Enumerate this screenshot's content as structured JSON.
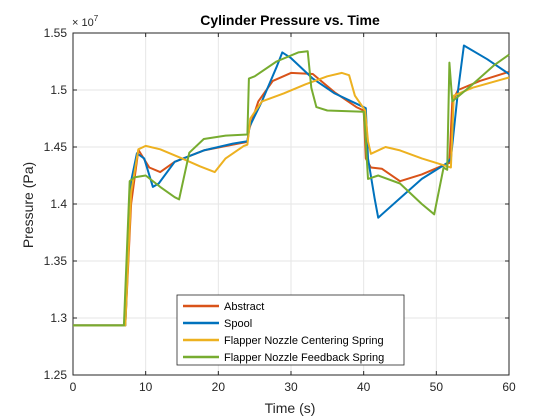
{
  "chart_data": {
    "type": "line",
    "title": "Cylinder Pressure vs. Time",
    "xlabel": "Time (s)",
    "ylabel": "Pressure (Pa)",
    "xlim": [
      0,
      60
    ],
    "ylim": [
      1.25,
      1.55
    ],
    "y_exponent_label": "× 10",
    "y_exponent_power": "7",
    "x_ticks": [
      "0",
      "10",
      "20",
      "30",
      "40",
      "50",
      "60"
    ],
    "y_ticks": [
      "1.25",
      "1.3",
      "1.35",
      "1.4",
      "1.45",
      "1.5",
      "1.55"
    ],
    "grid": true,
    "legend_position": "bottom-center",
    "series": [
      {
        "name": "Abstract",
        "color": "#D95319",
        "x": [
          0,
          7.2,
          8.0,
          9.0,
          10.5,
          12.0,
          14.0,
          18.0,
          22.0,
          24.0,
          24.2,
          25.5,
          27.5,
          30.0,
          33.0,
          36.0,
          39.0,
          40.0,
          40.3,
          41.0,
          42.5,
          45.0,
          48.0,
          51.0,
          51.8,
          52.2,
          53.0,
          56.0,
          60.0
        ],
        "y": [
          1.2935,
          1.2935,
          1.4,
          1.4475,
          1.432,
          1.428,
          1.437,
          1.447,
          1.452,
          1.4545,
          1.465,
          1.49,
          1.508,
          1.515,
          1.514,
          1.498,
          1.485,
          1.482,
          1.44,
          1.432,
          1.431,
          1.42,
          1.426,
          1.434,
          1.436,
          1.49,
          1.5,
          1.508,
          1.516
        ]
      },
      {
        "name": "Spool",
        "color": "#0072BD",
        "x": [
          0,
          7.2,
          8.0,
          8.8,
          9.8,
          11.0,
          11.8,
          14.0,
          18.0,
          22.0,
          24.0,
          24.3,
          26.0,
          28.0,
          28.8,
          30.0,
          33.0,
          36.0,
          39.0,
          40.3,
          40.6,
          41.5,
          42.0,
          45.0,
          48.0,
          51.5,
          52.0,
          53.0,
          53.8,
          57.0,
          60.0
        ],
        "y": [
          1.2935,
          1.2935,
          1.42,
          1.4445,
          1.44,
          1.415,
          1.418,
          1.437,
          1.447,
          1.453,
          1.455,
          1.468,
          1.49,
          1.52,
          1.533,
          1.528,
          1.51,
          1.497,
          1.488,
          1.484,
          1.44,
          1.405,
          1.388,
          1.405,
          1.422,
          1.436,
          1.44,
          1.5,
          1.539,
          1.527,
          1.514
        ]
      },
      {
        "name": "Flapper Nozzle Centering Spring",
        "color": "#EDB120",
        "x": [
          0,
          7.2,
          8.0,
          9.0,
          10.0,
          12.0,
          15.0,
          17.5,
          19.5,
          21.0,
          23.5,
          24.0,
          24.4,
          26.0,
          29.0,
          32.0,
          35.0,
          37.0,
          38.0,
          38.8,
          40.2,
          40.6,
          41.0,
          43.0,
          45.0,
          48.0,
          51.0,
          52.0,
          52.4,
          55.0,
          60.0
        ],
        "y": [
          1.2935,
          1.2935,
          1.41,
          1.448,
          1.451,
          1.448,
          1.44,
          1.433,
          1.428,
          1.44,
          1.451,
          1.452,
          1.475,
          1.49,
          1.497,
          1.505,
          1.512,
          1.515,
          1.513,
          1.495,
          1.482,
          1.455,
          1.444,
          1.45,
          1.447,
          1.44,
          1.434,
          1.432,
          1.495,
          1.502,
          1.511
        ]
      },
      {
        "name": "Flapper Nozzle Feedback Spring",
        "color": "#77AC30",
        "x": [
          0,
          7.0,
          7.8,
          8.5,
          10.0,
          12.0,
          14.0,
          14.6,
          16.0,
          18.0,
          21.0,
          24.0,
          24.2,
          25.0,
          28.0,
          31.0,
          32.3,
          32.8,
          33.5,
          35.0,
          40.0,
          40.2,
          40.6,
          42.0,
          45.0,
          48.0,
          49.7,
          51.0,
          51.5,
          51.8,
          52.2,
          55.0,
          58.0,
          60.0
        ],
        "y": [
          1.2935,
          1.2935,
          1.42,
          1.4235,
          1.425,
          1.415,
          1.406,
          1.404,
          1.445,
          1.457,
          1.46,
          1.461,
          1.51,
          1.512,
          1.525,
          1.533,
          1.534,
          1.502,
          1.485,
          1.482,
          1.481,
          1.465,
          1.422,
          1.425,
          1.418,
          1.4,
          1.391,
          1.432,
          1.43,
          1.524,
          1.49,
          1.505,
          1.522,
          1.531
        ]
      }
    ]
  }
}
